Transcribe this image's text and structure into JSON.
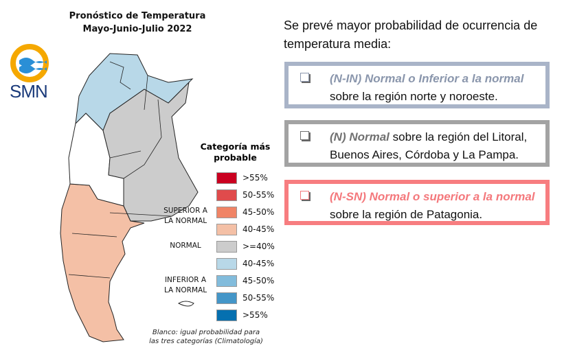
{
  "map": {
    "title_line1": "Pronóstico de Temperatura",
    "title_line2": "Mayo-Junio-Julio 2022",
    "logo_text": "SMN",
    "legend": {
      "title_line1": "Categoría más",
      "title_line2": "probable",
      "groups": [
        {
          "label_line1": "SUPERIOR A",
          "label_line2": "LA NORMAL"
        },
        {
          "label_line1": "NORMAL",
          "label_line2": ""
        },
        {
          "label_line1": "INFERIOR A",
          "label_line2": "LA NORMAL"
        }
      ],
      "items": [
        {
          "label": ">55%",
          "color": "#ca0020"
        },
        {
          "label": "50-55%",
          "color": "#e04b4c"
        },
        {
          "label": "45-50%",
          "color": "#f08466"
        },
        {
          "label": "40-45%",
          "color": "#f4c0a6"
        },
        {
          "label": ">=40%",
          "color": "#cccccc"
        },
        {
          "label": "40-45%",
          "color": "#b8d8e8"
        },
        {
          "label": "45-50%",
          "color": "#82bcdc"
        },
        {
          "label": "50-55%",
          "color": "#4496c8"
        },
        {
          "label": ">55%",
          "color": "#0570b0"
        }
      ]
    },
    "footer_line1": "Blanco: igual probabilidad para",
    "footer_line2": "las tres categorías (Climatología)"
  },
  "summary": {
    "intro": "Se prevé mayor probabilidad de ocurrencia de temperatura media:",
    "items": [
      {
        "highlight": "(N-IN) Normal o Inferior a la normal",
        "text": " sobre la región norte y noroeste.",
        "color": "#8a96ac",
        "border": "#a9b4c8"
      },
      {
        "highlight": "(N) Normal",
        "text": " sobre la región del Litoral, Buenos Aires, Córdoba y La Pampa.",
        "color": "#707070",
        "border": "#a3a3a3"
      },
      {
        "highlight": "(N-SN) Normal o superior a la normal",
        "text": " sobre la región de Patagonia.",
        "color": "#f4787c",
        "border": "#f77d80"
      }
    ]
  }
}
